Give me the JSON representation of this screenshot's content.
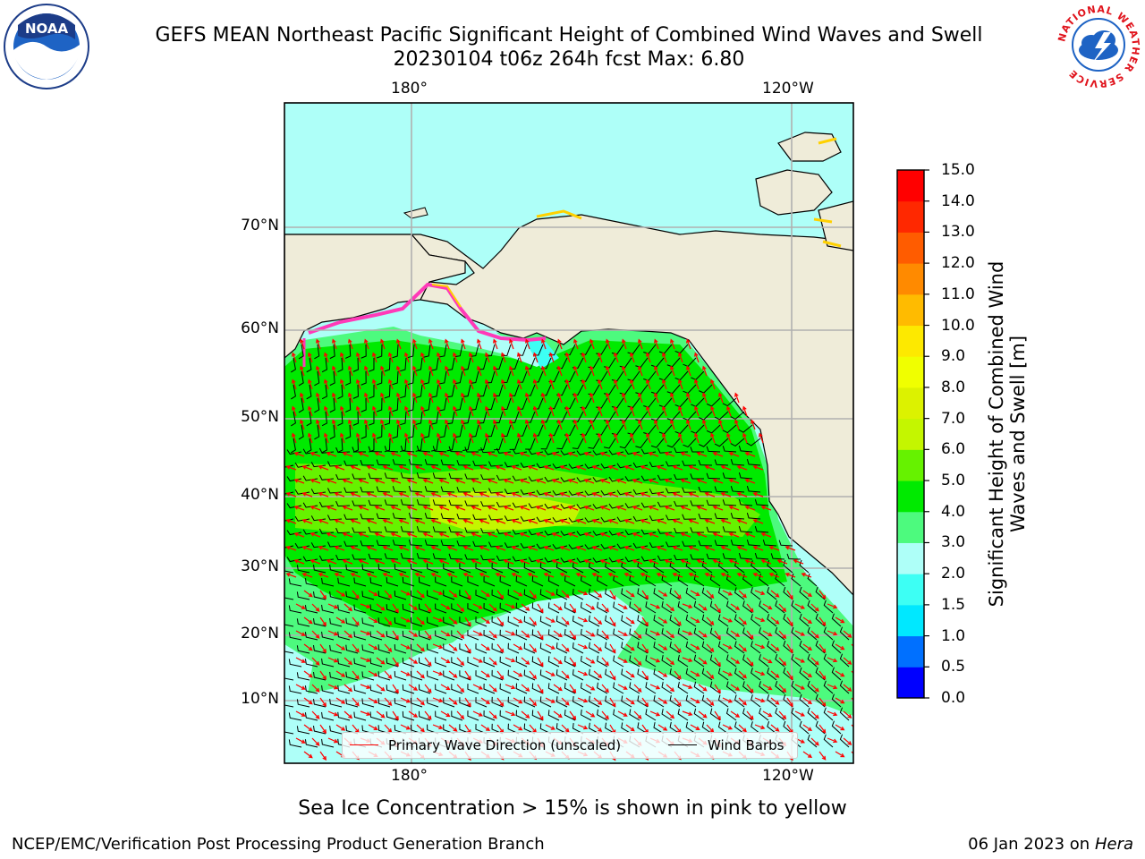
{
  "header": {
    "title_line1": "GEFS MEAN Northeast Pacific Significant Height of Combined Wind Waves and Swell",
    "title_line2": "20230104 t06z 264h fcst   Max: 6.80"
  },
  "logos": {
    "noaa_text": "NOAA",
    "noaa_ring": "NATIONAL OCEANIC AND ATMOSPHERIC ADMINISTRATION · U.S. DEPARTMENT OF COMMERCE",
    "nws_ring": "NATIONAL WEATHER SERVICE"
  },
  "map": {
    "lon_labels": [
      "180°",
      "120°W"
    ],
    "lat_labels": [
      "70°N",
      "60°N",
      "50°N",
      "40°N",
      "30°N",
      "20°N",
      "10°N"
    ],
    "land_color": "#efecd9",
    "ice_colors": [
      "#ff3ab8",
      "#ff8fd0",
      "#ffd100",
      "#ffe46b"
    ]
  },
  "colorbar": {
    "label": "Significant Height of Combined Wind Waves and Swell [m]",
    "ticks": [
      "0.0",
      "0.5",
      "1.0",
      "1.5",
      "2.0",
      "3.0",
      "4.0",
      "5.0",
      "6.0",
      "7.0",
      "8.0",
      "9.0",
      "10.0",
      "11.0",
      "12.0",
      "13.0",
      "14.0",
      "15.0"
    ],
    "colors": [
      "#0000ff",
      "#0070ff",
      "#00e8ff",
      "#3dfff4",
      "#aefff8",
      "#4dfa7e",
      "#00ea00",
      "#66f200",
      "#c4f600",
      "#dcf200",
      "#f0ff00",
      "#fde900",
      "#ffbb00",
      "#ff8a00",
      "#ff5c00",
      "#ff2800",
      "#ff0000"
    ]
  },
  "legend": {
    "wave_label": "Primary Wave Direction (unscaled)",
    "wave_color": "#ff0000",
    "wind_label": "Wind Barbs",
    "wind_color": "#000000"
  },
  "footer": {
    "ice_note": "Sea Ice Concentration > 15% is shown in pink to yellow",
    "branch": "NCEP/EMC/Verification Post Processing Product Generation Branch",
    "date": "06 Jan 2023 on",
    "machine": "Hera"
  }
}
